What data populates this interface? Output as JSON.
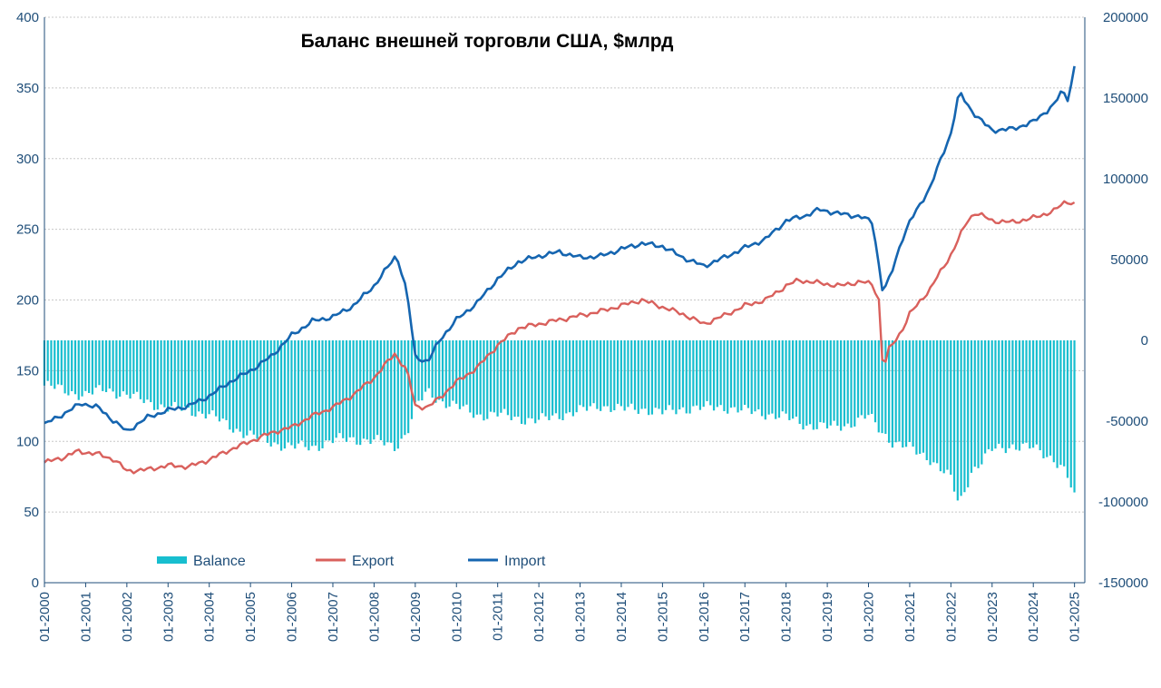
{
  "chart_data": {
    "type": "line",
    "title": "Баланс внешней торговли США, $млрд",
    "x": [
      "01-2000",
      "01-2001",
      "01-2002",
      "01-2003",
      "01-2004",
      "01-2005",
      "01-2006",
      "01-2007",
      "01-2008",
      "01-2009",
      "01-2010",
      "01-2011",
      "01-2012",
      "01-2013",
      "01-2014",
      "01-2015",
      "01-2016",
      "01-2017",
      "01-2018",
      "01-2019",
      "01-2020",
      "01-2021",
      "01-2022",
      "01-2023",
      "01-2024",
      "01-2025"
    ],
    "y_left": {
      "ticks": [
        "0",
        "50",
        "100",
        "150",
        "200",
        "250",
        "300",
        "350",
        "400"
      ],
      "range": [
        0,
        400
      ]
    },
    "y_right": {
      "ticks": [
        "-150000",
        "-100000",
        "-50000",
        "0",
        "50000",
        "100000",
        "150000",
        "200000"
      ],
      "range": [
        -150000,
        200000
      ]
    },
    "grid": "horizontal dotted",
    "legend": [
      {
        "name": "Balance",
        "color": "#17becf",
        "kind": "bar"
      },
      {
        "name": "Export",
        "color": "#d9605c",
        "kind": "line"
      },
      {
        "name": "Import",
        "color": "#1565b0",
        "kind": "line"
      }
    ],
    "series": [
      {
        "name": "Export",
        "axis": "left",
        "points": [
          [
            2000.0,
            85
          ],
          [
            2000.5,
            89
          ],
          [
            2000.8,
            93
          ],
          [
            2001.3,
            91
          ],
          [
            2001.7,
            87
          ],
          [
            2002.0,
            79
          ],
          [
            2002.5,
            80
          ],
          [
            2003.0,
            83
          ],
          [
            2003.5,
            82
          ],
          [
            2004.0,
            87
          ],
          [
            2004.5,
            94
          ],
          [
            2005.0,
            100
          ],
          [
            2005.5,
            106
          ],
          [
            2006.0,
            110
          ],
          [
            2006.5,
            118
          ],
          [
            2007.0,
            124
          ],
          [
            2007.5,
            133
          ],
          [
            2008.0,
            145
          ],
          [
            2008.5,
            162
          ],
          [
            2008.8,
            150
          ],
          [
            2009.0,
            125
          ],
          [
            2009.3,
            124
          ],
          [
            2009.6,
            131
          ],
          [
            2010.0,
            142
          ],
          [
            2010.5,
            152
          ],
          [
            2011.0,
            168
          ],
          [
            2011.5,
            180
          ],
          [
            2012.0,
            183
          ],
          [
            2012.5,
            186
          ],
          [
            2013.0,
            189
          ],
          [
            2013.5,
            192
          ],
          [
            2014.0,
            196
          ],
          [
            2014.5,
            200
          ],
          [
            2015.0,
            195
          ],
          [
            2015.5,
            190
          ],
          [
            2016.0,
            183
          ],
          [
            2016.5,
            189
          ],
          [
            2017.0,
            196
          ],
          [
            2017.5,
            200
          ],
          [
            2018.0,
            210
          ],
          [
            2018.3,
            214
          ],
          [
            2018.8,
            212
          ],
          [
            2019.3,
            210
          ],
          [
            2019.8,
            213
          ],
          [
            2020.1,
            211
          ],
          [
            2020.25,
            200
          ],
          [
            2020.35,
            150
          ],
          [
            2020.5,
            165
          ],
          [
            2020.8,
            178
          ],
          [
            2021.0,
            190
          ],
          [
            2021.5,
            208
          ],
          [
            2022.0,
            232
          ],
          [
            2022.4,
            256
          ],
          [
            2022.6,
            262
          ],
          [
            2023.0,
            256
          ],
          [
            2023.5,
            255
          ],
          [
            2024.0,
            258
          ],
          [
            2024.5,
            263
          ],
          [
            2024.8,
            270
          ],
          [
            2025.0,
            268
          ]
        ]
      },
      {
        "name": "Import",
        "axis": "left",
        "points": [
          [
            2000.0,
            112
          ],
          [
            2000.5,
            120
          ],
          [
            2000.9,
            127
          ],
          [
            2001.3,
            124
          ],
          [
            2001.7,
            114
          ],
          [
            2002.0,
            107
          ],
          [
            2002.5,
            117
          ],
          [
            2003.0,
            122
          ],
          [
            2003.5,
            125
          ],
          [
            2004.0,
            132
          ],
          [
            2004.5,
            142
          ],
          [
            2005.0,
            150
          ],
          [
            2005.5,
            160
          ],
          [
            2006.0,
            175
          ],
          [
            2006.5,
            185
          ],
          [
            2007.0,
            188
          ],
          [
            2007.5,
            196
          ],
          [
            2008.0,
            210
          ],
          [
            2008.55,
            232
          ],
          [
            2008.8,
            205
          ],
          [
            2009.0,
            160
          ],
          [
            2009.3,
            156
          ],
          [
            2009.6,
            172
          ],
          [
            2010.0,
            186
          ],
          [
            2010.5,
            198
          ],
          [
            2011.0,
            215
          ],
          [
            2011.5,
            227
          ],
          [
            2012.0,
            231
          ],
          [
            2012.5,
            234
          ],
          [
            2013.0,
            230
          ],
          [
            2013.5,
            231
          ],
          [
            2014.0,
            236
          ],
          [
            2014.5,
            240
          ],
          [
            2015.0,
            238
          ],
          [
            2015.5,
            230
          ],
          [
            2016.0,
            224
          ],
          [
            2016.5,
            230
          ],
          [
            2017.0,
            237
          ],
          [
            2017.5,
            243
          ],
          [
            2018.0,
            256
          ],
          [
            2018.5,
            260
          ],
          [
            2018.8,
            264
          ],
          [
            2019.3,
            261
          ],
          [
            2019.8,
            259
          ],
          [
            2020.1,
            255
          ],
          [
            2020.35,
            205
          ],
          [
            2020.55,
            218
          ],
          [
            2020.8,
            242
          ],
          [
            2021.0,
            255
          ],
          [
            2021.5,
            280
          ],
          [
            2022.0,
            318
          ],
          [
            2022.2,
            347
          ],
          [
            2022.5,
            334
          ],
          [
            2022.8,
            325
          ],
          [
            2023.0,
            320
          ],
          [
            2023.5,
            321
          ],
          [
            2024.0,
            326
          ],
          [
            2024.5,
            338
          ],
          [
            2024.7,
            348
          ],
          [
            2024.85,
            342
          ],
          [
            2025.0,
            365
          ]
        ]
      },
      {
        "name": "Balance",
        "axis": "right",
        "kind": "bar",
        "points": [
          [
            2000.0,
            -28000
          ],
          [
            2000.5,
            -31000
          ],
          [
            2001.0,
            -34000
          ],
          [
            2001.5,
            -30000
          ],
          [
            2002.0,
            -34000
          ],
          [
            2002.5,
            -38000
          ],
          [
            2003.0,
            -42000
          ],
          [
            2003.5,
            -43000
          ],
          [
            2004.0,
            -46000
          ],
          [
            2004.5,
            -53000
          ],
          [
            2005.0,
            -59000
          ],
          [
            2005.5,
            -63000
          ],
          [
            2006.0,
            -66000
          ],
          [
            2006.5,
            -66000
          ],
          [
            2007.0,
            -62000
          ],
          [
            2007.5,
            -61000
          ],
          [
            2008.0,
            -62000
          ],
          [
            2008.5,
            -66000
          ],
          [
            2008.8,
            -57000
          ],
          [
            2009.0,
            -42000
          ],
          [
            2009.3,
            -32000
          ],
          [
            2009.6,
            -37000
          ],
          [
            2010.0,
            -41000
          ],
          [
            2010.5,
            -46000
          ],
          [
            2011.0,
            -46000
          ],
          [
            2011.5,
            -48000
          ],
          [
            2012.0,
            -50000
          ],
          [
            2012.5,
            -46000
          ],
          [
            2013.0,
            -44000
          ],
          [
            2013.5,
            -40000
          ],
          [
            2014.0,
            -43000
          ],
          [
            2014.5,
            -42000
          ],
          [
            2015.0,
            -45000
          ],
          [
            2015.5,
            -42000
          ],
          [
            2016.0,
            -42000
          ],
          [
            2016.5,
            -41000
          ],
          [
            2017.0,
            -44000
          ],
          [
            2017.5,
            -45000
          ],
          [
            2018.0,
            -48000
          ],
          [
            2018.5,
            -52000
          ],
          [
            2019.0,
            -54000
          ],
          [
            2019.5,
            -52000
          ],
          [
            2020.0,
            -47000
          ],
          [
            2020.3,
            -56000
          ],
          [
            2020.6,
            -63000
          ],
          [
            2021.0,
            -67000
          ],
          [
            2021.5,
            -73000
          ],
          [
            2022.0,
            -86000
          ],
          [
            2022.2,
            -102000
          ],
          [
            2022.5,
            -81000
          ],
          [
            2022.8,
            -74000
          ],
          [
            2023.0,
            -68000
          ],
          [
            2023.5,
            -65000
          ],
          [
            2024.0,
            -67000
          ],
          [
            2024.5,
            -73000
          ],
          [
            2024.8,
            -82000
          ],
          [
            2025.0,
            -98000
          ]
        ]
      }
    ]
  }
}
